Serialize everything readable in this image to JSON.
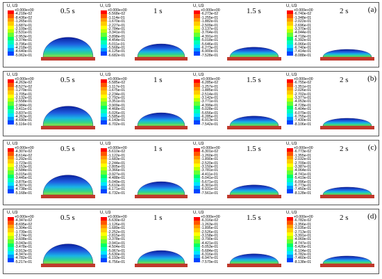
{
  "legend_title": "U, U3",
  "legend_colors": [
    "#ff0000",
    "#ff5500",
    "#ff9900",
    "#ffcc00",
    "#ffff00",
    "#bbff00",
    "#66ff33",
    "#00ff66",
    "#00ffbb",
    "#00e5ff",
    "#0099ff",
    "#0044ff",
    "#0000ff"
  ],
  "substrate_color": "#c0392b",
  "rows": [
    {
      "label": "(a)",
      "frames": [
        {
          "time": "0.5 s",
          "values": [
            "+0.000e+00",
            "-4.218e-02",
            "-8.436e-02",
            "-1.265e-01",
            "-1.687e-01",
            "-2.109e-01",
            "-2.531e-01",
            "-2.953e-01",
            "-3.374e-01",
            "-3.796e-01",
            "-4.218e-01",
            "-4.640e-01",
            "-5.062e-01"
          ]
        },
        {
          "time": "1 s",
          "values": [
            "+0.000e+00",
            "-5.568e-02",
            "-1.114e-01",
            "-1.670e-01",
            "-2.227e-01",
            "-2.784e-01",
            "-3.341e-01",
            "-3.898e-01",
            "-4.454e-01",
            "-5.011e-01",
            "-5.568e-01",
            "-6.125e-01",
            "-6.682e-01"
          ]
        },
        {
          "time": "1.5 s",
          "values": [
            "+0.000e+00",
            "-6.273e-02",
            "-1.255e-01",
            "-1.882e-01",
            "-2.509e-01",
            "-3.137e-01",
            "-3.764e-01",
            "-4.391e-01",
            "-5.018e-01",
            "-5.646e-01",
            "-6.273e-01",
            "-6.900e-01",
            "-7.528e-01"
          ]
        },
        {
          "time": "2 s",
          "values": [
            "+0.000e+00",
            "-6.740e-02",
            "-1.348e-01",
            "-2.022e-01",
            "-2.696e-01",
            "-3.370e-01",
            "-4.044e-01",
            "-4.718e-01",
            "-5.392e-01",
            "-6.066e-01",
            "-6.740e-01",
            "-7.414e-01",
            "-8.088e-01"
          ]
        }
      ]
    },
    {
      "label": "(b)",
      "frames": [
        {
          "time": "0.5 s",
          "values": [
            "+0.000e+00",
            "-4.263e-02",
            "-8.527e-02",
            "-1.279e-01",
            "-1.705e-01",
            "-2.132e-01",
            "-2.558e-01",
            "-2.984e-01",
            "-3.411e-01",
            "-3.837e-01",
            "-4.263e-01",
            "-4.690e-01",
            "-5.116e-01"
          ]
        },
        {
          "time": "1 s",
          "values": [
            "+0.000e+00",
            "-5.585e-02",
            "-1.117e-01",
            "-1.675e-01",
            "-2.234e-01",
            "-2.792e-01",
            "-3.351e-01",
            "-3.909e-01",
            "-4.468e-01",
            "-5.026e-01",
            "-5.585e-01",
            "-6.143e-01",
            "-6.702e-01"
          ]
        },
        {
          "time": "1.5 s",
          "values": [
            "+0.000e+00",
            "-6.285e-02",
            "-1.257e-01",
            "-1.885e-01",
            "-2.514e-01",
            "-3.142e-01",
            "-3.771e-01",
            "-4.399e-01",
            "-5.028e-01",
            "-5.656e-01",
            "-6.285e-01",
            "-6.913e-01",
            "-7.542e-01"
          ]
        },
        {
          "time": "2 s",
          "values": [
            "+0.000e+00",
            "-6.755e-02",
            "-1.351e-01",
            "-2.026e-01",
            "-2.702e-01",
            "-3.377e-01",
            "-4.053e-01",
            "-4.728e-01",
            "-5.404e-01",
            "-6.079e-01",
            "-6.755e-01",
            "-7.430e-01",
            "-8.106e-01"
          ]
        }
      ]
    },
    {
      "label": "(c)",
      "frames": [
        {
          "time": "0.5 s",
          "values": [
            "+0.000e+00",
            "-4.307e-02",
            "-8.614e-02",
            "-1.292e-01",
            "-1.723e-01",
            "-2.153e-01",
            "-2.584e-01",
            "-3.015e-01",
            "-3.445e-01",
            "-3.876e-01",
            "-4.307e-01",
            "-4.738e-01",
            "-5.168e-01"
          ]
        },
        {
          "time": "1 s",
          "values": [
            "+0.000e+00",
            "-5.610e-02",
            "-1.122e-01",
            "-1.683e-01",
            "-2.244e-01",
            "-2.805e-01",
            "-3.366e-01",
            "-3.927e-01",
            "-4.488e-01",
            "-5.049e-01",
            "-5.610e-01",
            "-6.171e-01",
            "-6.732e-01"
          ]
        },
        {
          "time": "1.5 s",
          "values": [
            "+0.000e+00",
            "-6.301e-02",
            "-1.260e-01",
            "-1.890e-01",
            "-2.520e-01",
            "-3.150e-01",
            "-3.781e-01",
            "-4.411e-01",
            "-5.041e-01",
            "-5.671e-01",
            "-6.301e-01",
            "-6.931e-01",
            "-7.561e-01"
          ]
        },
        {
          "time": "2 s",
          "values": [
            "+0.000e+00",
            "-6.773e-02",
            "-1.355e-01",
            "-2.032e-01",
            "-2.709e-01",
            "-3.387e-01",
            "-4.064e-01",
            "-4.741e-01",
            "-5.419e-01",
            "-6.096e-01",
            "-6.773e-01",
            "-7.450e-01",
            "-8.128e-01"
          ]
        }
      ]
    },
    {
      "label": "(d)",
      "frames": [
        {
          "time": "0.5 s",
          "values": [
            "+0.000e+00",
            "-4.347e-02",
            "-8.695e-02",
            "-1.304e-01",
            "-1.739e-01",
            "-2.174e-01",
            "-2.608e-01",
            "-3.043e-01",
            "-3.478e-01",
            "-3.913e-01",
            "-4.347e-01",
            "-4.782e-01",
            "-5.217e-01"
          ]
        },
        {
          "time": "1 s",
          "values": [
            "+0.000e+00",
            "-5.630e-02",
            "-1.126e-01",
            "-1.689e-01",
            "-2.252e-01",
            "-2.815e-01",
            "-3.378e-01",
            "-3.941e-01",
            "-4.504e-01",
            "-5.067e-01",
            "-5.630e-01",
            "-6.193e-01",
            "-6.756e-01"
          ]
        },
        {
          "time": "1.5 s",
          "values": [
            "+0.000e+00",
            "-6.316e-02",
            "-1.263e-01",
            "-1.895e-01",
            "-2.526e-01",
            "-3.158e-01",
            "-3.790e-01",
            "-4.421e-01",
            "-5.053e-01",
            "-5.684e-01",
            "-6.316e-01",
            "-6.947e-01",
            "-7.579e-01"
          ]
        },
        {
          "time": "2 s",
          "values": [
            "+0.000e+00",
            "-6.782e-02",
            "-1.356e-01",
            "-2.035e-01",
            "-2.713e-01",
            "-3.391e-01",
            "-4.069e-01",
            "-4.747e-01",
            "-5.426e-01",
            "-6.104e-01",
            "-6.782e-01",
            "-7.460e-01",
            "-8.138e-01"
          ]
        }
      ]
    }
  ]
}
